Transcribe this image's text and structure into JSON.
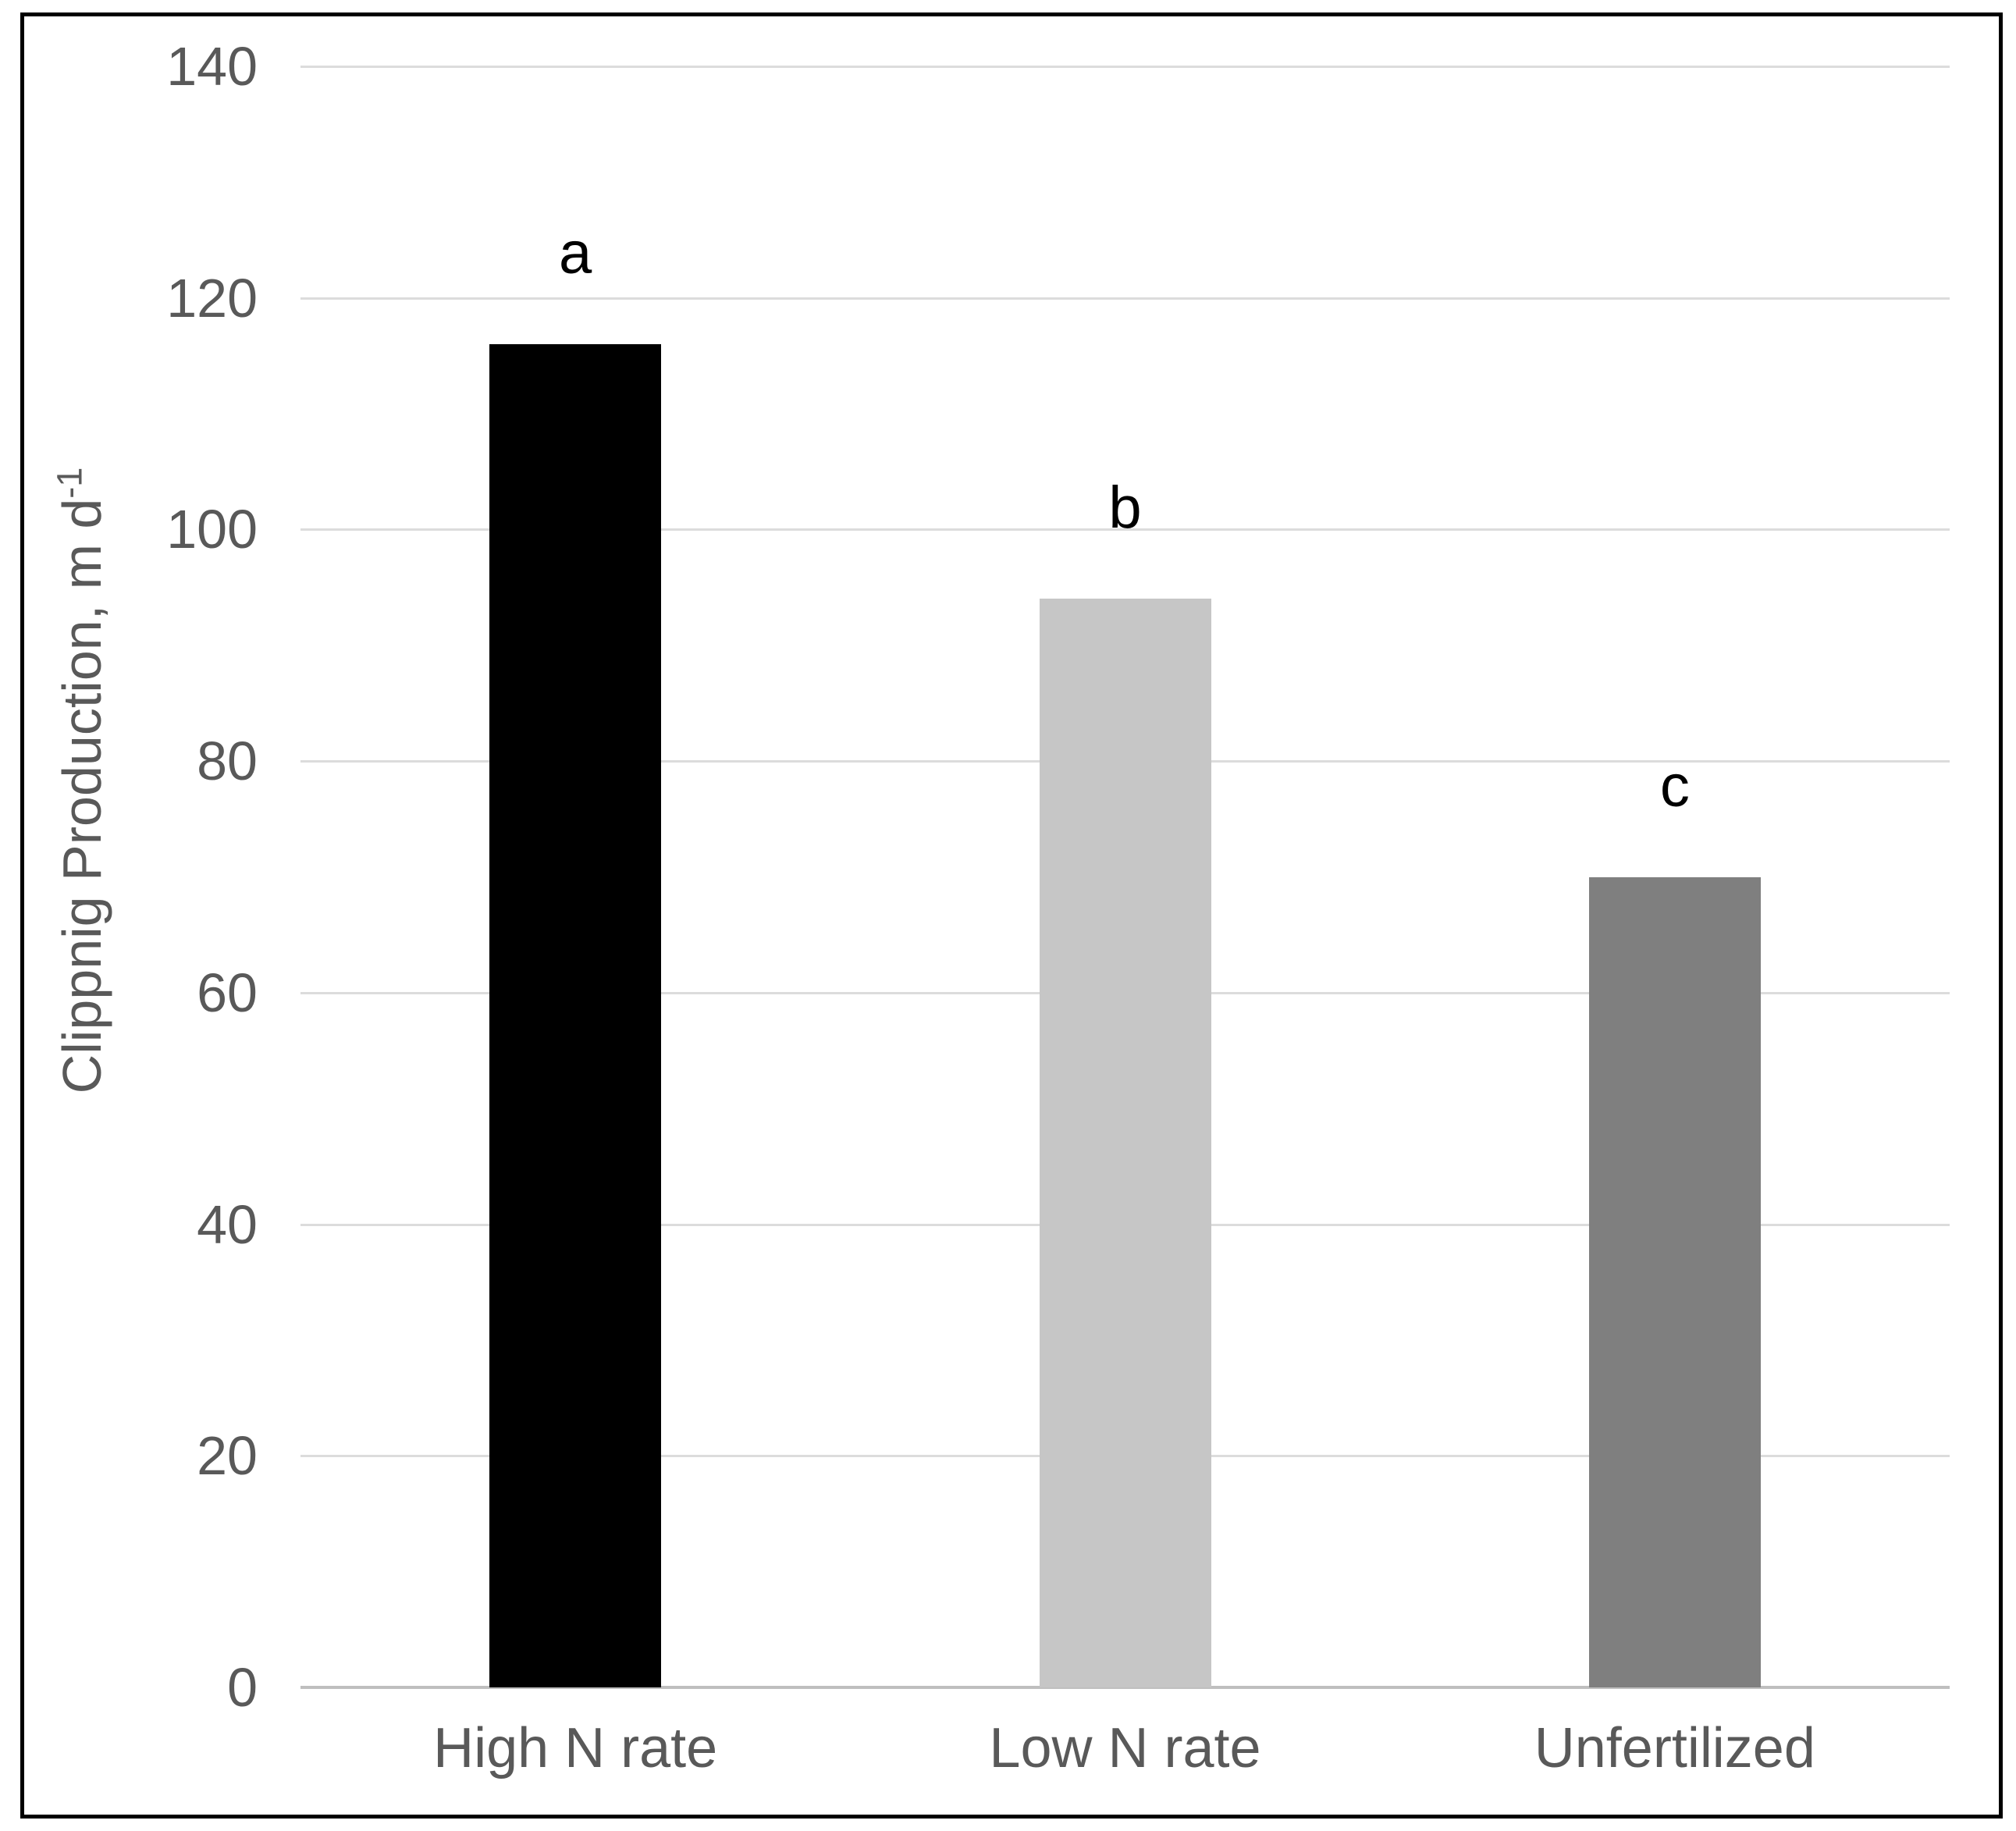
{
  "chart_data": {
    "type": "bar",
    "categories": [
      "High N rate",
      "Low N rate",
      "Unfertilized"
    ],
    "values": [
      116,
      94,
      70
    ],
    "bar_colors": [
      "#000000",
      "#c6c6c6",
      "#7f7f7f"
    ],
    "bar_letters": [
      "a",
      "b",
      "c"
    ],
    "title": "",
    "xlabel": "",
    "ylabel_main": "Clippnig Production, m d",
    "ylabel_sup": "-1",
    "ylim": [
      0,
      140
    ],
    "yticks": [
      0,
      20,
      40,
      60,
      80,
      100,
      120,
      140
    ],
    "grid": "horizontal-only",
    "legend": "none",
    "colors": {
      "axis_text": "#595959",
      "gridline": "#dcdcdc",
      "axis_line": "#bfbfbf",
      "annotation_text": "#000000",
      "frame_border": "#000000",
      "background": "#ffffff"
    }
  }
}
